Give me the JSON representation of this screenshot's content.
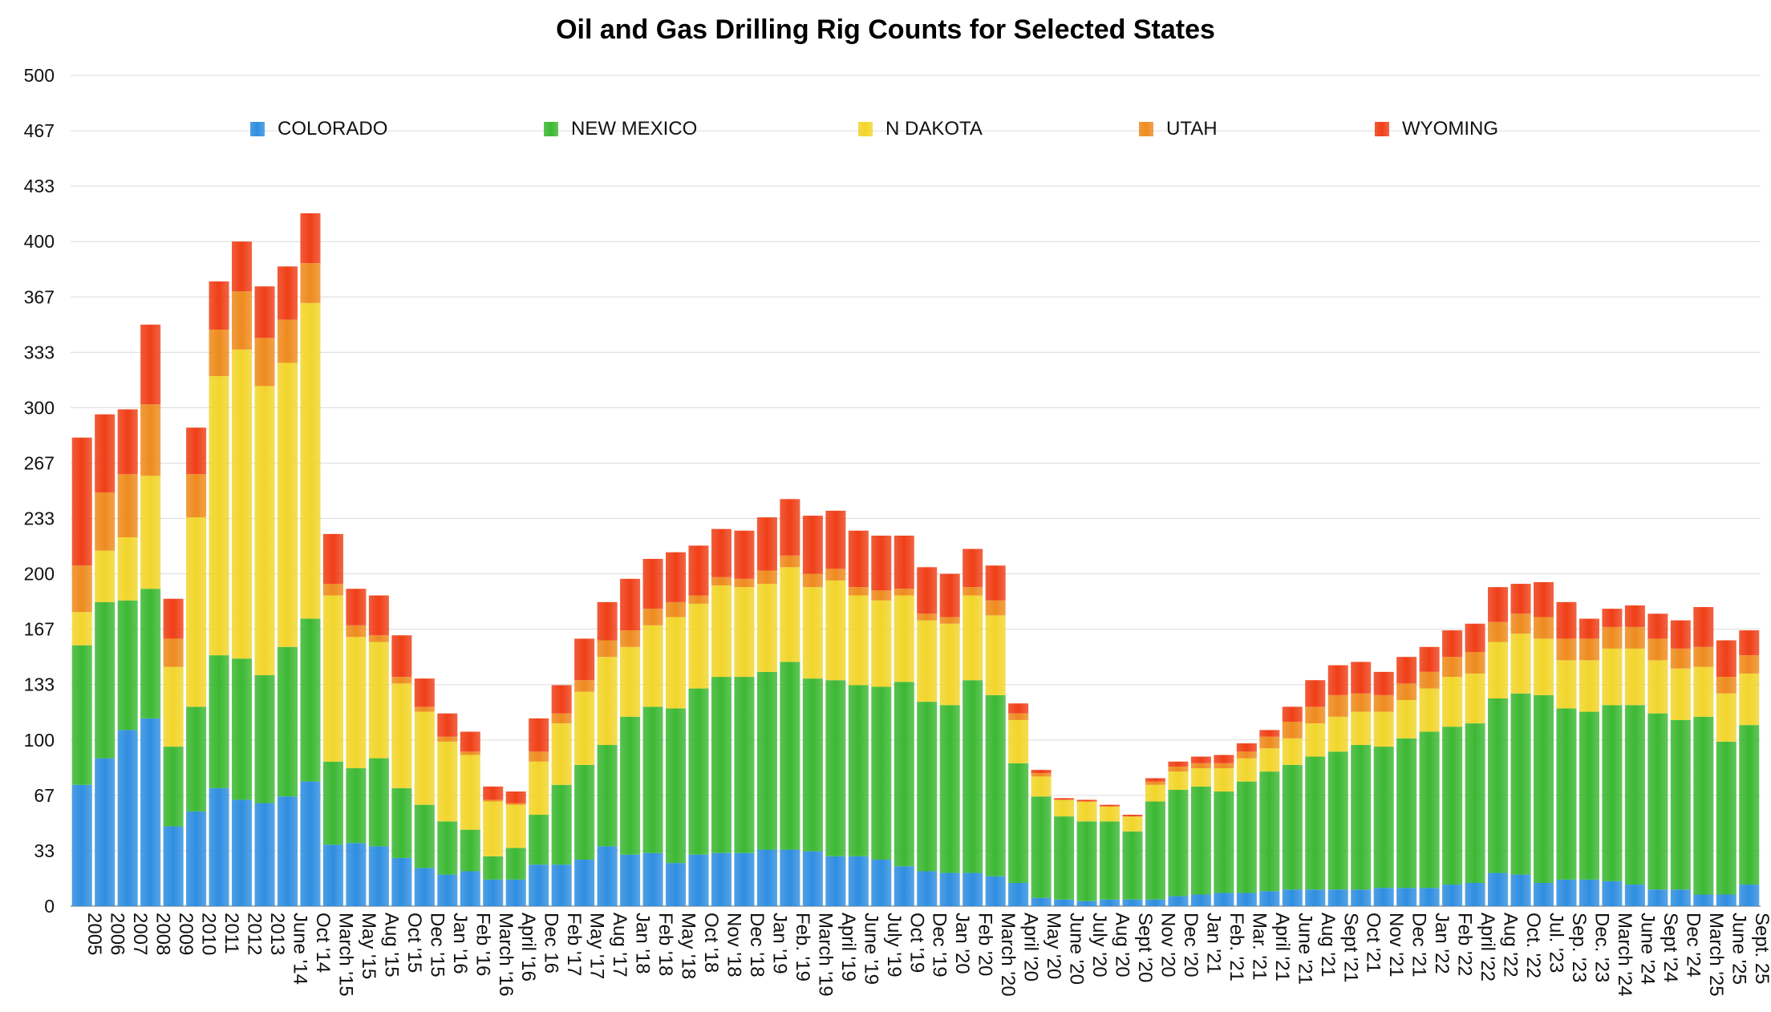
{
  "chart_data": {
    "type": "bar",
    "stacked": true,
    "title": "Oil and Gas Drilling Rig Counts for Selected States",
    "xlabel": "",
    "ylabel": "",
    "ylim": [
      0,
      500
    ],
    "yticks": [
      "0",
      "33",
      "67",
      "100",
      "133",
      "167",
      "200",
      "233",
      "267",
      "300",
      "333",
      "367",
      "400",
      "433",
      "467",
      "500"
    ],
    "grid": true,
    "legend_position": "top",
    "categories": [
      "2005",
      "2006",
      "2007",
      "2008",
      "2009",
      "2010",
      "2011",
      "2012",
      "2013",
      "June '14",
      "Oct '14",
      "March '15",
      "May '15",
      "Aug '15",
      "Oct '15",
      "Dec '15",
      "Jan '16",
      "Feb '16",
      "March '16",
      "April '16",
      "Dec '16",
      "Feb '17",
      "May '17",
      "Aug '17",
      "Jan '18",
      "Feb '18",
      "May '18",
      "Oct '18",
      "Nov '18",
      "Dec '18",
      "Jan '19",
      "Feb. '19",
      "March '19",
      "April '19",
      "June '19",
      "July '19",
      "Oct '19",
      "Dec '19",
      "Jan '20",
      "Feb '20",
      "March '20",
      "April '20",
      "May '20",
      "June '20",
      "July '20",
      "Aug '20",
      "Sept '20",
      "Nov '20",
      "Dec '20",
      "Jan '21",
      "Feb. '21",
      "Mar. '21",
      "April '21",
      "June '21",
      "Aug '21",
      "Sept '21",
      "Oct '21",
      "Nov '21",
      "Dec '21",
      "Jan '22",
      "Feb '22",
      "April '22",
      "Aug '22",
      "Oct. '22",
      "Jul. '23",
      "Sep. '23",
      "Dec. '23",
      "March '24",
      "June '24",
      "Sept '24",
      "Dec '24",
      "March '25",
      "June '25",
      "Sept. 25"
    ],
    "category_labels": [
      "2005",
      "2006",
      "2007",
      "2008",
      "2009",
      "2010",
      "2011",
      "2012",
      "2013",
      "June '14",
      "Oct '14",
      "March '15",
      "May '15",
      "Aug '15",
      "Oct '15",
      "Dec '15",
      "Jan '16",
      "Feb '16",
      "March '16",
      "April '16",
      "Dec 16",
      "Feb '17",
      "May '17",
      "Aug '17",
      "Jan '18",
      "Feb '18",
      "May '18",
      "Oct '18",
      "Nov '18",
      "Dec '18",
      "Jan '19",
      "Feb. '19",
      "March '19",
      "April '19",
      "June '19",
      "July '19",
      "Oct '19",
      "Dec '19",
      "Jan '20",
      "Feb '20",
      "March '20",
      "April '20",
      "May '20",
      "June '20",
      "July '20",
      "Aug '20",
      "Sept '20",
      "Nov '20",
      "Dec '20",
      "Jan '21",
      "Feb. '21",
      "Mar. '21",
      "April '21",
      "June '21",
      "Aug '21",
      "Sept '21",
      "Oct '21",
      "Nov '21",
      "Dec '21",
      "Jan '22",
      "Feb '22",
      "April '22",
      "Aug '22",
      "Oct. '22",
      "Jul. '23",
      "Sep. '23",
      "Dec. '23",
      "March '24",
      "June '24",
      "Sept '24",
      "Dec '24",
      "March '25",
      "June '25",
      "Sept. 25"
    ],
    "series": [
      {
        "name": "COLORADO",
        "color": "#2f8ee0",
        "values": [
          73,
          89,
          106,
          113,
          48,
          57,
          71,
          64,
          62,
          66,
          75,
          37,
          38,
          36,
          29,
          23,
          19,
          21,
          16,
          16,
          25,
          25,
          28,
          36,
          31,
          32,
          26,
          31,
          32,
          32,
          34,
          34,
          33,
          30,
          30,
          28,
          24,
          21,
          20,
          20,
          18,
          14,
          5,
          4,
          3,
          4,
          4,
          4,
          6,
          7,
          8,
          8,
          9,
          10,
          10,
          10,
          10,
          11,
          11,
          11,
          13,
          14,
          20,
          19,
          14,
          16,
          16,
          15,
          13,
          10,
          10,
          7,
          7,
          13
        ]
      },
      {
        "name": "NEW MEXICO",
        "color": "#3cb833",
        "values": [
          84,
          94,
          78,
          78,
          48,
          63,
          80,
          85,
          77,
          90,
          98,
          50,
          45,
          53,
          42,
          38,
          32,
          25,
          14,
          19,
          30,
          48,
          57,
          61,
          83,
          88,
          93,
          100,
          106,
          106,
          107,
          113,
          104,
          106,
          103,
          104,
          111,
          102,
          101,
          116,
          109,
          72,
          61,
          50,
          48,
          47,
          41,
          59,
          64,
          65,
          61,
          67,
          72,
          75,
          80,
          83,
          87,
          85,
          90,
          94,
          95,
          96,
          105,
          109,
          113,
          103,
          101,
          106,
          108,
          106,
          102,
          107,
          92,
          96
        ]
      },
      {
        "name": "N DAKOTA",
        "color": "#f2d52b",
        "values": [
          20,
          31,
          38,
          68,
          48,
          114,
          168,
          186,
          174,
          171,
          190,
          100,
          79,
          70,
          63,
          56,
          48,
          45,
          33,
          26,
          32,
          37,
          44,
          53,
          42,
          49,
          55,
          51,
          55,
          54,
          53,
          57,
          55,
          60,
          54,
          52,
          52,
          49,
          49,
          51,
          48,
          26,
          12,
          10,
          12,
          9,
          9,
          10,
          11,
          11,
          14,
          14,
          14,
          16,
          20,
          21,
          20,
          21,
          23,
          26,
          30,
          30,
          34,
          36,
          34,
          29,
          31,
          34,
          34,
          32,
          31,
          30,
          29,
          31
        ]
      },
      {
        "name": "UTAH",
        "color": "#ee8b1e",
        "values": [
          28,
          35,
          38,
          43,
          17,
          26,
          28,
          35,
          29,
          26,
          24,
          7,
          7,
          4,
          4,
          3,
          3,
          2,
          1,
          1,
          6,
          6,
          7,
          10,
          10,
          10,
          9,
          5,
          5,
          5,
          8,
          7,
          8,
          7,
          5,
          6,
          4,
          4,
          4,
          5,
          9,
          4,
          2,
          0,
          0,
          0,
          0,
          2,
          3,
          3,
          3,
          4,
          7,
          10,
          10,
          13,
          11,
          10,
          10,
          10,
          12,
          13,
          12,
          12,
          13,
          13,
          13,
          13,
          13,
          13,
          12,
          12,
          10,
          11
        ]
      },
      {
        "name": "WYOMING",
        "color": "#ef3f17",
        "values": [
          77,
          47,
          39,
          48,
          24,
          28,
          29,
          30,
          31,
          32,
          30,
          30,
          22,
          24,
          25,
          17,
          14,
          12,
          8,
          7,
          20,
          17,
          25,
          23,
          31,
          30,
          30,
          30,
          29,
          29,
          32,
          34,
          35,
          35,
          34,
          33,
          32,
          28,
          26,
          23,
          21,
          6,
          2,
          1,
          1,
          1,
          1,
          2,
          3,
          4,
          5,
          5,
          4,
          9,
          16,
          18,
          19,
          14,
          16,
          15,
          16,
          17,
          21,
          18,
          21,
          22,
          12,
          11,
          13,
          15,
          17,
          24,
          22,
          15
        ]
      }
    ]
  }
}
